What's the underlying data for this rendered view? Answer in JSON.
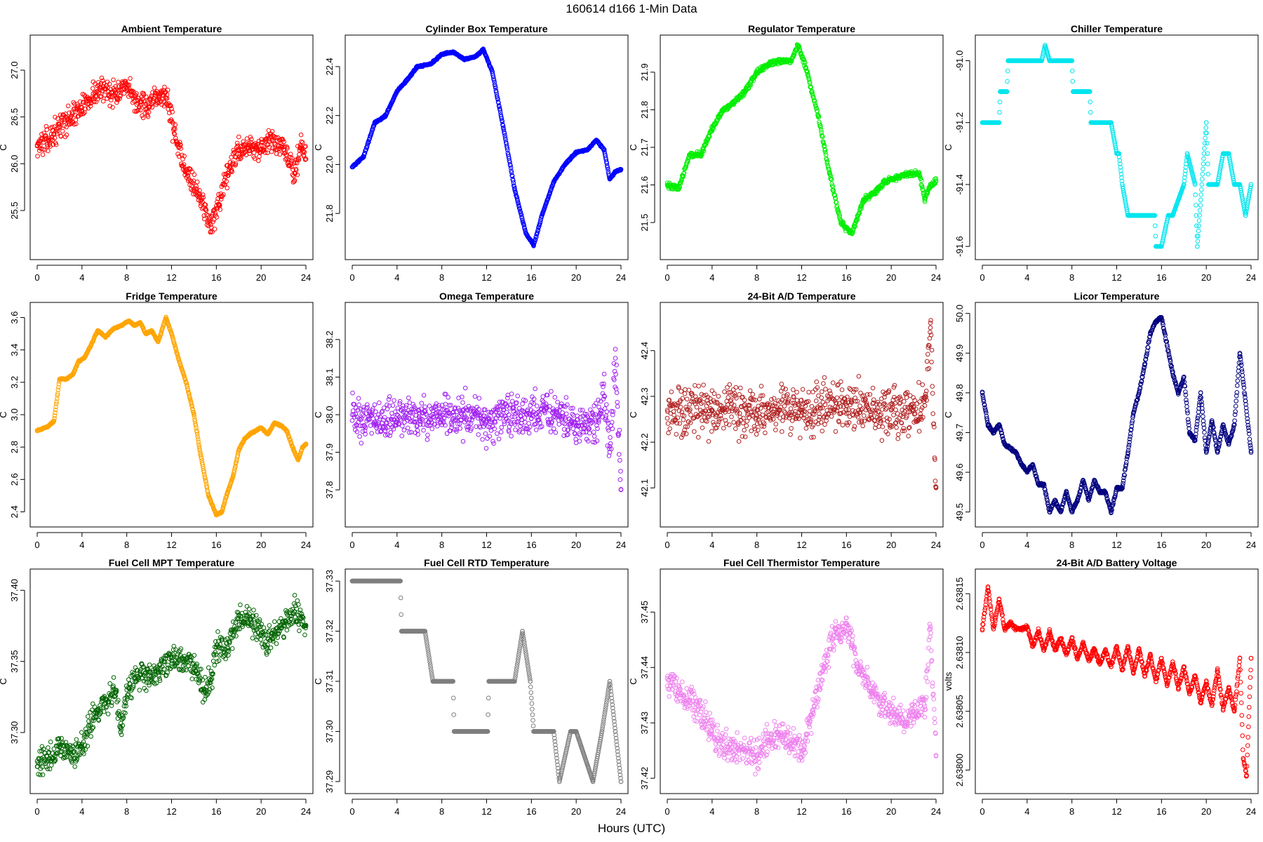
{
  "page_title": "160614   d166   1-Min Data",
  "x_label": "Hours (UTC)",
  "chart_data": [
    {
      "type": "scatter",
      "title": "Ambient Temperature",
      "ylabel": "C",
      "color": "#ff0000",
      "xlim": [
        0,
        24
      ],
      "xticks": [
        0,
        4,
        8,
        12,
        16,
        20,
        24
      ],
      "ylim": [
        25.05,
        27.3
      ],
      "yticks": [
        "25.5",
        "26.0",
        "26.5",
        "27.0"
      ],
      "noise": 0.11,
      "x": [
        0,
        1,
        2,
        3,
        4,
        5,
        6,
        7,
        8,
        9,
        10,
        11,
        11.6,
        12.5,
        13.5,
        14.5,
        15.5,
        16.3,
        17,
        18,
        19,
        20,
        21,
        22,
        23,
        23.5,
        24
      ],
      "y": [
        26.2,
        26.25,
        26.4,
        26.5,
        26.6,
        26.75,
        26.8,
        26.75,
        26.8,
        26.65,
        26.6,
        26.75,
        26.7,
        26.2,
        25.9,
        25.65,
        25.35,
        25.55,
        25.9,
        26.15,
        26.2,
        26.15,
        26.25,
        26.15,
        25.9,
        26.2,
        26.05
      ]
    },
    {
      "type": "scatter",
      "title": "Cylinder Box Temperature",
      "ylabel": "C",
      "color": "#0000ff",
      "xlim": [
        0,
        24
      ],
      "xticks": [
        0,
        4,
        8,
        12,
        16,
        20,
        24
      ],
      "ylim": [
        21.64,
        22.5
      ],
      "yticks": [
        "21.8",
        "22.0",
        "22.2",
        "22.4"
      ],
      "noise": 0.003,
      "x": [
        0,
        1,
        2,
        3,
        4,
        5,
        5.8,
        7,
        8,
        9,
        10,
        11,
        11.7,
        12.5,
        13.5,
        14.5,
        15.5,
        16.2,
        17,
        18,
        19,
        20,
        21,
        21.8,
        22.5,
        23,
        23.5,
        24
      ],
      "y": [
        21.99,
        22.03,
        22.17,
        22.2,
        22.3,
        22.35,
        22.4,
        22.41,
        22.45,
        22.46,
        22.43,
        22.44,
        22.47,
        22.38,
        22.15,
        21.9,
        21.72,
        21.67,
        21.8,
        21.93,
        22.0,
        22.05,
        22.06,
        22.1,
        22.06,
        21.94,
        21.97,
        21.98
      ]
    },
    {
      "type": "scatter",
      "title": "Regulator Temperature",
      "ylabel": "C",
      "color": "#00ee00",
      "xlim": [
        0,
        24
      ],
      "xticks": [
        0,
        4,
        8,
        12,
        16,
        20,
        24
      ],
      "ylim": [
        21.42,
        21.98
      ],
      "yticks": [
        "21.5",
        "21.6",
        "21.7",
        "21.8",
        "21.9"
      ],
      "noise": 0.006,
      "x": [
        0,
        1,
        2,
        3,
        4,
        5,
        6,
        7,
        8,
        9,
        10,
        11,
        11.7,
        12.5,
        13.5,
        14.5,
        15.5,
        16.5,
        17.5,
        18.5,
        19.5,
        20.5,
        21.5,
        22.5,
        23,
        23.5,
        24
      ],
      "y": [
        21.6,
        21.59,
        21.68,
        21.68,
        21.75,
        21.8,
        21.82,
        21.85,
        21.9,
        21.92,
        21.93,
        21.93,
        21.97,
        21.9,
        21.78,
        21.63,
        21.5,
        21.47,
        21.56,
        21.58,
        21.61,
        21.62,
        21.63,
        21.63,
        21.56,
        21.6,
        21.61
      ]
    },
    {
      "type": "scatter",
      "title": "Chiller Temperature",
      "ylabel": "C",
      "color": "#00e5ee",
      "xlim": [
        0,
        24
      ],
      "xticks": [
        0,
        4,
        8,
        12,
        16,
        20,
        24
      ],
      "ylim": [
        -91.62,
        -90.94
      ],
      "yticks": [
        "-91.6",
        "-91.4",
        "-91.2",
        "-91.0"
      ],
      "noise": 0,
      "x": [
        0,
        1.5,
        1.6,
        2.2,
        2.3,
        3.2,
        3.3,
        5.3,
        5.6,
        6.0,
        6.1,
        8.0,
        8.1,
        9.6,
        9.7,
        11.5,
        12.0,
        12.2,
        12.5,
        13.0,
        13.3,
        15.4,
        15.5,
        16.0,
        16.6,
        17.0,
        18.0,
        18.3,
        19.0,
        19.2,
        20.0,
        20.2,
        21.0,
        21.5,
        22.0,
        22.5,
        23.0,
        23.5,
        24.0
      ],
      "y": [
        -91.2,
        -91.2,
        -91.1,
        -91.1,
        -91.0,
        -91.0,
        -91.0,
        -91.0,
        -90.95,
        -91.0,
        -91.0,
        -91.0,
        -91.1,
        -91.1,
        -91.2,
        -91.2,
        -91.3,
        -91.3,
        -91.4,
        -91.5,
        -91.5,
        -91.5,
        -91.6,
        -91.6,
        -91.5,
        -91.5,
        -91.4,
        -91.3,
        -91.4,
        -91.6,
        -91.2,
        -91.4,
        -91.4,
        -91.3,
        -91.3,
        -91.4,
        -91.4,
        -91.5,
        -91.4
      ]
    },
    {
      "type": "scatter",
      "title": "Fridge Temperature",
      "ylabel": "C",
      "color": "#ffa500",
      "xlim": [
        0,
        24
      ],
      "xticks": [
        0,
        4,
        8,
        12,
        16,
        20,
        24
      ],
      "ylim": [
        2.35,
        3.65
      ],
      "yticks": [
        "2.4",
        "2.6",
        "2.8",
        "3.0",
        "3.2",
        "3.4",
        "3.6"
      ],
      "noise": 0.004,
      "x": [
        0,
        1,
        1.5,
        2,
        2.6,
        3.2,
        3.7,
        4.2,
        4.8,
        5.4,
        6.1,
        6.8,
        7.5,
        8.2,
        8.7,
        9.2,
        9.7,
        10.2,
        10.8,
        11.5,
        12.0,
        12.6,
        13.3,
        14.0,
        14.6,
        15.3,
        16.0,
        16.5,
        17.0,
        17.5,
        18.0,
        18.5,
        19.0,
        19.5,
        20.0,
        20.6,
        21.2,
        21.8,
        22.3,
        22.8,
        23.3,
        23.7,
        24.0
      ],
      "y": [
        2.9,
        2.93,
        2.96,
        3.22,
        3.22,
        3.25,
        3.33,
        3.35,
        3.43,
        3.52,
        3.48,
        3.53,
        3.55,
        3.58,
        3.55,
        3.57,
        3.5,
        3.52,
        3.45,
        3.6,
        3.5,
        3.35,
        3.2,
        3.0,
        2.75,
        2.5,
        2.38,
        2.4,
        2.52,
        2.62,
        2.78,
        2.85,
        2.88,
        2.9,
        2.92,
        2.88,
        2.95,
        2.93,
        2.9,
        2.8,
        2.72,
        2.8,
        2.82
      ]
    },
    {
      "type": "scatter",
      "title": "Omega Temperature",
      "ylabel": "C",
      "color": "#a020f0",
      "xlim": [
        0,
        24
      ],
      "xticks": [
        0,
        4,
        8,
        12,
        16,
        20,
        24
      ],
      "ylim": [
        37.72,
        38.28
      ],
      "yticks": [
        "37.8",
        "37.9",
        "38.0",
        "38.1",
        "38.2"
      ],
      "noise": 0.045,
      "x": [
        0,
        2,
        4,
        6,
        8,
        10,
        12,
        14,
        16,
        18,
        20,
        22,
        22.5,
        23,
        23.5,
        24
      ],
      "y": [
        38.0,
        37.98,
        38.0,
        37.99,
        38.0,
        38.0,
        37.98,
        38.0,
        37.99,
        38.01,
        37.97,
        37.98,
        38.05,
        37.9,
        38.15,
        37.8
      ]
    },
    {
      "type": "scatter",
      "title": "24-Bit A/D Temperature",
      "ylabel": "C",
      "color": "#b22222",
      "xlim": [
        0,
        24
      ],
      "xticks": [
        0,
        4,
        8,
        12,
        16,
        20,
        24
      ],
      "ylim": [
        42.03,
        42.49
      ],
      "yticks": [
        "42.1",
        "42.2",
        "42.3",
        "42.4"
      ],
      "noise": 0.045,
      "x": [
        0,
        4,
        8,
        12,
        16,
        20,
        22,
        23,
        23.5,
        24
      ],
      "y": [
        42.27,
        42.27,
        42.27,
        42.27,
        42.28,
        42.27,
        42.27,
        42.28,
        42.45,
        42.1
      ]
    },
    {
      "type": "scatter",
      "title": "Licor Temperature",
      "ylabel": "C",
      "color": "#000080",
      "xlim": [
        0,
        24
      ],
      "xticks": [
        0,
        4,
        8,
        12,
        16,
        20,
        24
      ],
      "ylim": [
        49.48,
        50.01
      ],
      "yticks": [
        "49.5",
        "49.6",
        "49.7",
        "49.8",
        "49.9",
        "50.0"
      ],
      "noise": 0.003,
      "x": [
        0,
        0.5,
        1,
        1.5,
        2,
        3,
        3.5,
        4,
        4.5,
        5,
        5.5,
        6,
        6.5,
        7,
        7.5,
        8,
        8.5,
        9,
        9.5,
        10,
        10.5,
        11,
        11.5,
        12,
        12.5,
        13,
        13.5,
        14,
        14.5,
        15,
        15.5,
        16,
        16.5,
        17,
        17.5,
        18,
        18.5,
        19,
        19.5,
        20,
        20.5,
        21,
        21.5,
        22,
        22.5,
        23,
        23.5,
        24
      ],
      "y": [
        49.8,
        49.72,
        49.7,
        49.72,
        49.67,
        49.65,
        49.62,
        49.6,
        49.62,
        49.57,
        49.57,
        49.5,
        49.53,
        49.5,
        49.55,
        49.5,
        49.53,
        49.58,
        49.53,
        49.58,
        49.55,
        49.55,
        49.5,
        49.56,
        49.56,
        49.65,
        49.75,
        49.8,
        49.87,
        49.95,
        49.98,
        49.99,
        49.92,
        49.85,
        49.8,
        49.84,
        49.7,
        49.68,
        49.8,
        49.65,
        49.73,
        49.65,
        49.72,
        49.67,
        49.72,
        49.9,
        49.78,
        49.65
      ]
    },
    {
      "type": "scatter",
      "title": "Fuel Cell MPT Temperature",
      "ylabel": "C",
      "color": "#006400",
      "xlim": [
        0,
        24
      ],
      "xticks": [
        0,
        4,
        8,
        12,
        16,
        20,
        24
      ],
      "ylim": [
        37.262,
        37.41
      ],
      "yticks": [
        "37.30",
        "37.35",
        "37.40"
      ],
      "noise": 0.008,
      "x": [
        0,
        1,
        2,
        3,
        4,
        5,
        6,
        7,
        7.5,
        8,
        9,
        10,
        11,
        12,
        13,
        14,
        15,
        15.5,
        16,
        17,
        18,
        19,
        20,
        20.5,
        21,
        22,
        23,
        24
      ],
      "y": [
        37.28,
        37.28,
        37.29,
        37.285,
        37.29,
        37.31,
        37.32,
        37.33,
        37.302,
        37.33,
        37.338,
        37.34,
        37.345,
        37.353,
        37.35,
        37.345,
        37.33,
        37.335,
        37.36,
        37.36,
        37.38,
        37.38,
        37.37,
        37.36,
        37.37,
        37.375,
        37.385,
        37.375
      ]
    },
    {
      "type": "scatter",
      "title": "Fuel Cell RTD Temperature",
      "ylabel": "C",
      "color": "#7f7f7f",
      "xlim": [
        0,
        24
      ],
      "xticks": [
        0,
        4,
        8,
        12,
        16,
        20,
        24
      ],
      "ylim": [
        37.289,
        37.331
      ],
      "yticks": [
        "37.29",
        "37.30",
        "37.31",
        "37.32",
        "37.33"
      ],
      "noise": 0,
      "x": [
        0,
        4.3,
        4.4,
        6.5,
        7.2,
        9.0,
        9.1,
        12.1,
        12.2,
        14.5,
        15.2,
        15.9,
        16.2,
        18.0,
        18.5,
        19.5,
        20.0,
        21.5,
        22.3,
        23.0,
        23.5,
        24.0
      ],
      "y": [
        37.33,
        37.33,
        37.32,
        37.32,
        37.31,
        37.31,
        37.3,
        37.3,
        37.31,
        37.31,
        37.32,
        37.31,
        37.3,
        37.3,
        37.29,
        37.3,
        37.3,
        37.29,
        37.3,
        37.31,
        37.3,
        37.29
      ]
    },
    {
      "type": "scatter",
      "title": "Fuel Cell Thermistor Temperature",
      "ylabel": "C",
      "color": "#ee82ee",
      "xlim": [
        0,
        24
      ],
      "xticks": [
        0,
        4,
        8,
        12,
        16,
        20,
        24
      ],
      "ylim": [
        37.4185,
        37.4565
      ],
      "yticks": [
        "37.42",
        "37.43",
        "37.44",
        "37.45"
      ],
      "noise": 0.0022,
      "x": [
        0,
        1,
        2,
        3,
        4,
        5,
        6,
        7,
        8,
        9,
        10,
        11,
        12,
        13,
        14,
        15,
        15.5,
        16,
        16.5,
        17,
        18,
        19,
        20,
        21,
        22,
        23,
        23.5,
        24
      ],
      "y": [
        37.438,
        37.436,
        37.434,
        37.432,
        37.428,
        37.426,
        37.425,
        37.425,
        37.424,
        37.427,
        37.428,
        37.427,
        37.425,
        37.432,
        37.44,
        37.447,
        37.446,
        37.448,
        37.444,
        37.44,
        37.437,
        37.433,
        37.432,
        37.43,
        37.432,
        37.433,
        37.447,
        37.424
      ]
    },
    {
      "type": "scatter",
      "title": "24-Bit A/D Battery Voltage",
      "ylabel": "volts",
      "color": "#ff0000",
      "xlim": [
        0,
        24
      ],
      "xticks": [
        0,
        4,
        8,
        12,
        16,
        20,
        24
      ],
      "ylim": [
        2.637986,
        2.638165
      ],
      "yticks": [
        "2.63800",
        "2.63805",
        "2.63810",
        "2.63815"
      ],
      "noise": 1.5e-06,
      "x": [
        0,
        0.5,
        1,
        1.5,
        2,
        2.5,
        3,
        3.5,
        4,
        4.5,
        5,
        5.5,
        6,
        6.5,
        7,
        7.5,
        8,
        8.5,
        9,
        9.5,
        10,
        10.5,
        11,
        11.5,
        12,
        12.5,
        13,
        13.5,
        14,
        14.5,
        15,
        15.5,
        16,
        16.5,
        17,
        17.5,
        18,
        18.5,
        19,
        19.5,
        20,
        20.5,
        21,
        21.5,
        22,
        22.5,
        23,
        23.3,
        23.6,
        24
      ],
      "y": [
        2.63812,
        2.638155,
        2.63812,
        2.638145,
        2.63812,
        2.638125,
        2.63812,
        2.63812,
        2.638122,
        2.638105,
        2.638118,
        2.638102,
        2.638118,
        2.638102,
        2.638112,
        2.638098,
        2.638112,
        2.638095,
        2.638108,
        2.638093,
        2.638103,
        2.63809,
        2.638102,
        2.638088,
        2.638105,
        2.638085,
        2.638105,
        2.638083,
        2.638103,
        2.63808,
        2.638098,
        2.638075,
        2.638095,
        2.638072,
        2.638092,
        2.63807,
        2.638088,
        2.638065,
        2.63808,
        2.638058,
        2.638075,
        2.638055,
        2.638085,
        2.638052,
        2.63807,
        2.63805,
        2.638095,
        2.63801,
        2.637995,
        2.638095
      ]
    }
  ]
}
